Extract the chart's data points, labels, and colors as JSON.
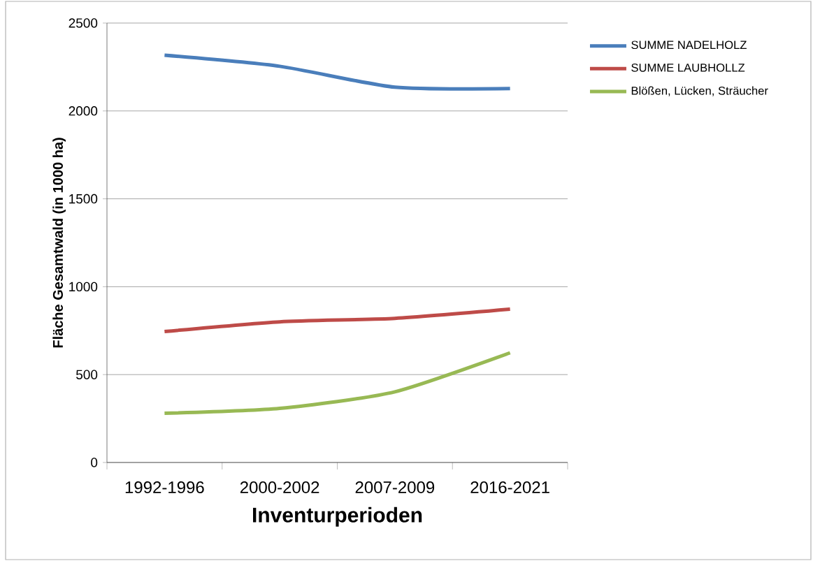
{
  "chart_data": {
    "type": "line",
    "xlabel": "Inventurperioden",
    "ylabel": "Fläche Gesamtwald (in 1000 ha)",
    "categories": [
      "1992-1996",
      "2000-2002",
      "2007-2009",
      "2016-2021"
    ],
    "series": [
      {
        "name": "SUMME NADELHOLZ",
        "color": "#4a7ebb",
        "values": [
          2317,
          2254,
          2135,
          2127
        ]
      },
      {
        "name": "SUMME LAUBHOLLZ",
        "color": "#be4b48",
        "values": [
          745,
          800,
          820,
          872
        ]
      },
      {
        "name": "Blößen, Lücken, Sträucher",
        "color": "#98b954",
        "values": [
          280,
          308,
          402,
          624
        ]
      }
    ],
    "ylim": [
      0,
      2500
    ],
    "yticks": [
      0,
      500,
      1000,
      1500,
      2000,
      2500
    ],
    "grid": "y",
    "legend": "top right",
    "marker": "none",
    "line_style": "solid"
  }
}
